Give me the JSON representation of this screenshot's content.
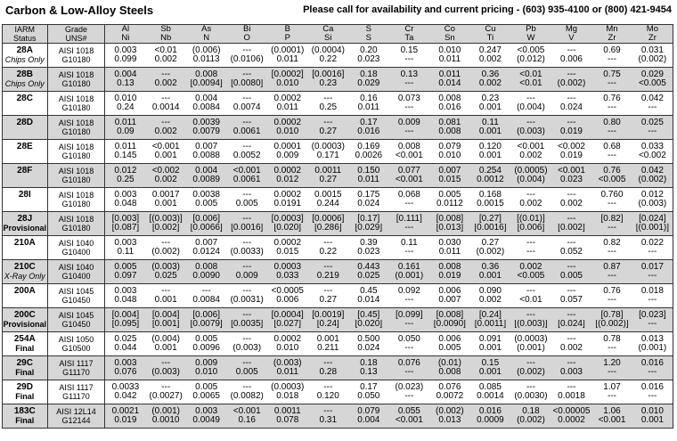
{
  "title": "Carbon & Low-Alloy Steels",
  "contact": "Please call for availability and current pricing - (603) 935-4100 or (800) 421-9454",
  "header": {
    "row1": [
      "IARM",
      "Grade",
      "Al",
      "Sb",
      "As",
      "Bi",
      "B",
      "Ca",
      "S",
      "Cr",
      "Co",
      "Cu",
      "Pb",
      "Mg",
      "Mn",
      "Mo"
    ],
    "row2": [
      "Status",
      "UNS#",
      "Ni",
      "Nb",
      "N",
      "O",
      "P",
      "Si",
      "S",
      "Ta",
      "Sn",
      "Ti",
      "W",
      "V",
      "Zr",
      "Zr"
    ]
  },
  "rows": [
    {
      "id": "28A",
      "status": "Chips Only",
      "grade": "AISI 1018",
      "uns": "G10180",
      "v1": [
        "0.003",
        "<0.01",
        "(0.006)",
        "---",
        "(0.0001)",
        "(0.0004)",
        "0.20",
        "0.15",
        "0.010",
        "0.247",
        "<0.005",
        "---",
        "0.69",
        "0.031"
      ],
      "v2": [
        "0.099",
        "0.002",
        "0.0113",
        "(0.0106)",
        "0.011",
        "0.22",
        "0.023",
        "---",
        "0.011",
        "0.002",
        "(0.012)",
        "0.006",
        "---",
        "(0.002)"
      ]
    },
    {
      "id": "28B",
      "status": "Chips Only",
      "grade": "AISI 1018",
      "uns": "G10180",
      "v1": [
        "0.004",
        "---",
        "0.008",
        "---",
        "[0.0002]",
        "[0.0016]",
        "0.18",
        "0.13",
        "0.011",
        "0.36",
        "<0.01",
        "---",
        "0.75",
        "0.029"
      ],
      "v2": [
        "0.13",
        "0.002",
        "[0.0094]",
        "[0.0080]",
        "0.010",
        "0.23",
        "0.029",
        "---",
        "0.014",
        "0.002",
        "<0.01",
        "(0.002)",
        "---",
        "<0.005"
      ]
    },
    {
      "id": "28C",
      "status": "",
      "grade": "AISI 1018",
      "uns": "G10180",
      "v1": [
        "0.010",
        "---",
        "0.004",
        "---",
        "0.0002",
        "---",
        "0.16",
        "0.073",
        "0.008",
        "0.23",
        "---",
        "---",
        "0.76",
        "0.042"
      ],
      "v2": [
        "0.24",
        "0.0014",
        "0.0084",
        "0.0074",
        "0.011",
        "0.25",
        "0.011",
        "---",
        "0.016",
        "0.001",
        "(0.004)",
        "0.024",
        "---",
        "---"
      ]
    },
    {
      "id": "28D",
      "status": "",
      "grade": "AISI 1018",
      "uns": "G10180",
      "v1": [
        "0.011",
        "---",
        "0.0039",
        "---",
        "0.0002",
        "---",
        "0.17",
        "0.009",
        "0.081",
        "0.11",
        "---",
        "---",
        "0.80",
        "0.025"
      ],
      "v2": [
        "0.09",
        "0.002",
        "0.0079",
        "0.0061",
        "0.010",
        "0.27",
        "0.016",
        "---",
        "0.008",
        "0.001",
        "(0.003)",
        "0.019",
        "---",
        "---"
      ]
    },
    {
      "id": "28E",
      "status": "",
      "grade": "AISI 1018",
      "uns": "G10180",
      "v1": [
        "0.011",
        "<0.001",
        "0.007",
        "---",
        "0.0001",
        "(0.0003)",
        "0.169",
        "0.008",
        "0.079",
        "0.120",
        "<0.001",
        "<0.002",
        "0.68",
        "0.033"
      ],
      "v2": [
        "0.145",
        "0.001",
        "0.0088",
        "0.0052",
        "0.009",
        "0.171",
        "0.0026",
        "<0.001",
        "0.010",
        "0.001",
        "0.002",
        "0.019",
        "---",
        "<0.002"
      ]
    },
    {
      "id": "28F",
      "status": "",
      "grade": "AISI 1018",
      "uns": "G10180",
      "v1": [
        "0.012",
        "<0.002",
        "0.004",
        "<0.001",
        "0.0002",
        "0.0011",
        "0.150",
        "0.077",
        "0.007",
        "0.254",
        "(0.0005)",
        "<0.001",
        "0.76",
        "0.042"
      ],
      "v2": [
        "0.25",
        "0.002",
        "0.0089",
        "0.0061",
        "0.012",
        "0.27",
        "0.011",
        "<0.001",
        "0.015",
        "0.0012",
        "(0.004)",
        "0.023",
        "<0.005",
        "(0.002)"
      ]
    },
    {
      "id": "28I",
      "status": "",
      "grade": "AISI 1018",
      "uns": "G10180",
      "v1": [
        "0.003",
        "0.0017",
        "0.0038",
        "---",
        "0.0002",
        "0.0015",
        "0.175",
        "0.068",
        "0.005",
        "0.168",
        "---",
        "---",
        "0.760",
        "0.012"
      ],
      "v2": [
        "0.048",
        "0.001",
        "0.005",
        "0.005",
        "0.0191",
        "0.244",
        "0.024",
        "---",
        "0.0112",
        "0.0015",
        "0.002",
        "0.002",
        "---",
        "(0.003)"
      ]
    },
    {
      "id": "28J",
      "status": "Provisional",
      "grade": "AISI 1018",
      "uns": "G10180",
      "v1": [
        "[0.003]",
        "[(0.003)]",
        "[0.006]",
        "---",
        "[0.0003]",
        "[0.0006]",
        "[0.17]",
        "[0.111]",
        "[0.008]",
        "[0.27]",
        "[(0.01)]",
        "---",
        "[0.82]",
        "[0.024]"
      ],
      "v2": [
        "[0.087]",
        "[0.002]",
        "[0.0066]",
        "[0.0016]",
        "[0.020]",
        "[0.286]",
        "[0.029]",
        "---",
        "[0.013]",
        "[0.0016]",
        "[0.006]",
        "[0.002]",
        "---",
        "[(0.001)]"
      ]
    },
    {
      "id": "210A",
      "status": "",
      "grade": "AISI 1040",
      "uns": "G10400",
      "v1": [
        "0.003",
        "---",
        "0.007",
        "---",
        "0.0002",
        "---",
        "0.39",
        "0.11",
        "0.030",
        "0.27",
        "---",
        "---",
        "0.82",
        "0.022"
      ],
      "v2": [
        "0.11",
        "(0.002)",
        "0.0124",
        "(0.0033)",
        "0.015",
        "0.22",
        "0.023",
        "---",
        "0.011",
        "(0.002)",
        "---",
        "0.052",
        "---",
        "---"
      ]
    },
    {
      "id": "210C",
      "status": "X-Ray Only",
      "grade": "AISI 1040",
      "uns": "G10400",
      "v1": [
        "0.005",
        "(0.003)",
        "0.008",
        "---",
        "0.0003",
        "---",
        "0.443",
        "0.161",
        "0.008",
        "0.36",
        "0.002",
        "---",
        "0.87",
        "0.017"
      ],
      "v2": [
        "0.097",
        "0.025",
        "0.0090",
        "0.009",
        "0.033",
        "0.219",
        "0.025",
        "(0.001)",
        "0.019",
        "0.001",
        "<0.005",
        "0.005",
        "---",
        "---"
      ]
    },
    {
      "id": "200A",
      "status": "",
      "grade": "AISI 1045",
      "uns": "G10450",
      "v1": [
        "0.003",
        "---",
        "---",
        "---",
        "<0.0005",
        "---",
        "0.45",
        "0.092",
        "0.006",
        "0.090",
        "---",
        "---",
        "0.76",
        "0.018"
      ],
      "v2": [
        "0.048",
        "0.001",
        "0.0084",
        "(0.0031)",
        "0.006",
        "0.27",
        "0.014",
        "---",
        "0.007",
        "0.002",
        "<0.01",
        "0.057",
        "---",
        "---"
      ]
    },
    {
      "id": "200C",
      "status": "Provisional",
      "grade": "AISI 1045",
      "uns": "G10450",
      "v1": [
        "[0.004]",
        "[0.004]",
        "[0.006]",
        "---",
        "[0.0004]",
        "[0.0019]",
        "[0.45]",
        "[0.099]",
        "[0.008]",
        "[0.24]",
        "---",
        "---",
        "[0.78]",
        "[0.023]"
      ],
      "v2": [
        "[0.095]",
        "[0.001]",
        "[0.0079]",
        "[0.0035]",
        "[0.027]",
        "[0.24]",
        "[0.020]",
        "---",
        "[0.0090]",
        "[0.0011]",
        "[(0.003)]",
        "[0.024]",
        "[(0.002)]",
        "---"
      ]
    },
    {
      "id": "254A",
      "status": "Final",
      "grade": "AISI 1050",
      "uns": "G10500",
      "v1": [
        "0.025",
        "(0.004)",
        "0.005",
        "---",
        "0.0002",
        "0.001",
        "0.500",
        "0.050",
        "0.006",
        "0.091",
        "(0.0003)",
        "---",
        "0.78",
        "0.013"
      ],
      "v2": [
        "0.044",
        "0.001",
        "0.0096",
        "(0.003)",
        "0.010",
        "0.211",
        "0.024",
        "---",
        "0.005",
        "0.001",
        "(0.001)",
        "0.002",
        "---",
        "(0.001)"
      ]
    },
    {
      "id": "29C",
      "status": "Final",
      "grade": "AISI 1117",
      "uns": "G11170",
      "v1": [
        "0.003",
        "---",
        "0.009",
        "---",
        "(0.003)",
        "---",
        "0.18",
        "0.076",
        "(0.01)",
        "0.15",
        "---",
        "---",
        "1.20",
        "0.016"
      ],
      "v2": [
        "0.076",
        "(0.003)",
        "0.010",
        "0.005",
        "0.011",
        "0.28",
        "0.13",
        "---",
        "0.008",
        "0.001",
        "(0.002)",
        "0.003",
        "---",
        "---"
      ]
    },
    {
      "id": "29D",
      "status": "Final",
      "grade": "AISI 1117",
      "uns": "G11170",
      "v1": [
        "0.0033",
        "---",
        "0.005",
        "---",
        "(0.0003)",
        "---",
        "0.17",
        "(0.023)",
        "0.076",
        "0.085",
        "---",
        "---",
        "1.07",
        "0.016"
      ],
      "v2": [
        "0.042",
        "(0.0027)",
        "0.0065",
        "(0.0082)",
        "0.018",
        "0.120",
        "0.050",
        "---",
        "0.0072",
        "0.0014",
        "(0.0030)",
        "0.0018",
        "---",
        "---"
      ]
    },
    {
      "id": "183C",
      "status": "Final",
      "grade": "AISI 12L14",
      "uns": "G12144",
      "v1": [
        "0.0021",
        "(0.001)",
        "0.003",
        "<0.001",
        "0.0011",
        "---",
        "0.079",
        "0.055",
        "(0.002)",
        "0.016",
        "0.18",
        "<0.00005",
        "1.06",
        "0.010"
      ],
      "v2": [
        "0.019",
        "0.0010",
        "0.0049",
        "0.16",
        "0.078",
        "0.31",
        "0.004",
        "<0.001",
        "0.013",
        "0.0009",
        "(0.002)",
        "0.0002",
        "<0.001",
        "0.001"
      ]
    }
  ]
}
